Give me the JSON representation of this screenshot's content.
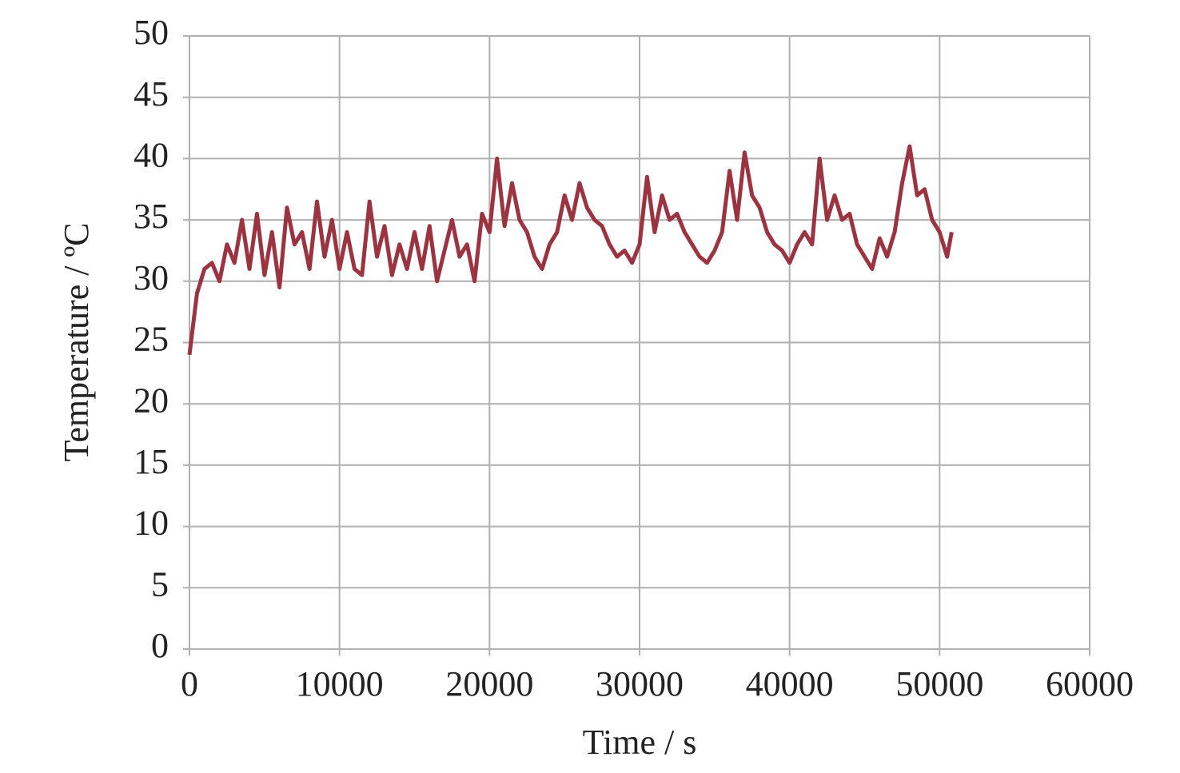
{
  "chart_data": {
    "type": "line",
    "x_label": "Time / s",
    "y_label": "Temperature / ºC",
    "x": [
      0,
      500,
      1000,
      1500,
      2000,
      2500,
      3000,
      3500,
      4000,
      4500,
      5000,
      5500,
      6000,
      6500,
      7000,
      7500,
      8000,
      8500,
      9000,
      9500,
      10000,
      10500,
      11000,
      11500,
      12000,
      12500,
      13000,
      13500,
      14000,
      14500,
      15000,
      15500,
      16000,
      16500,
      17000,
      17500,
      18000,
      18500,
      19000,
      19500,
      20000,
      20500,
      21000,
      21500,
      22000,
      22500,
      23000,
      23500,
      24000,
      24500,
      25000,
      25500,
      26000,
      26500,
      27000,
      27500,
      28000,
      28500,
      29000,
      29500,
      30000,
      30500,
      31000,
      31500,
      32000,
      32500,
      33000,
      33500,
      34000,
      34500,
      35000,
      35500,
      36000,
      36500,
      37000,
      37500,
      38000,
      38500,
      39000,
      39500,
      40000,
      40500,
      41000,
      41500,
      42000,
      42500,
      43000,
      43500,
      44000,
      44500,
      45000,
      45500,
      46000,
      46500,
      47000,
      47500,
      48000,
      48500,
      49000,
      49500,
      50000,
      50500,
      50800
    ],
    "series": [
      {
        "color": "#9b3340",
        "values": [
          24,
          29,
          31,
          31.5,
          30,
          33,
          31.5,
          35,
          31,
          35.5,
          30.5,
          34,
          29.5,
          36,
          33,
          34,
          31,
          36.5,
          32,
          35,
          31,
          34,
          31,
          30.5,
          36.5,
          32,
          34.5,
          30.5,
          33,
          31,
          34,
          31,
          34.5,
          30,
          32.5,
          35,
          32,
          33,
          30,
          35.5,
          34,
          40,
          34.5,
          38,
          35,
          34,
          32,
          31,
          33,
          34,
          37,
          35,
          38,
          36,
          35,
          34.5,
          33,
          32,
          32.5,
          31.5,
          33,
          38.5,
          34,
          37,
          35,
          35.5,
          34,
          33,
          32,
          31.5,
          32.5,
          34,
          39,
          35,
          40.5,
          37,
          36,
          34,
          33,
          32.5,
          31.5,
          33,
          34,
          33,
          40,
          35,
          37,
          35,
          35.5,
          33,
          32,
          31,
          33.5,
          32,
          34,
          38,
          41,
          37,
          37.5,
          35,
          34,
          32,
          34
        ]
      }
    ],
    "xlim": [
      0,
      60000
    ],
    "xticks": [
      0,
      10000,
      20000,
      30000,
      40000,
      50000,
      60000
    ],
    "ylim": [
      0,
      50
    ],
    "yticks": [
      0,
      5,
      10,
      15,
      20,
      25,
      30,
      35,
      40,
      45,
      50
    ],
    "grid": true
  }
}
